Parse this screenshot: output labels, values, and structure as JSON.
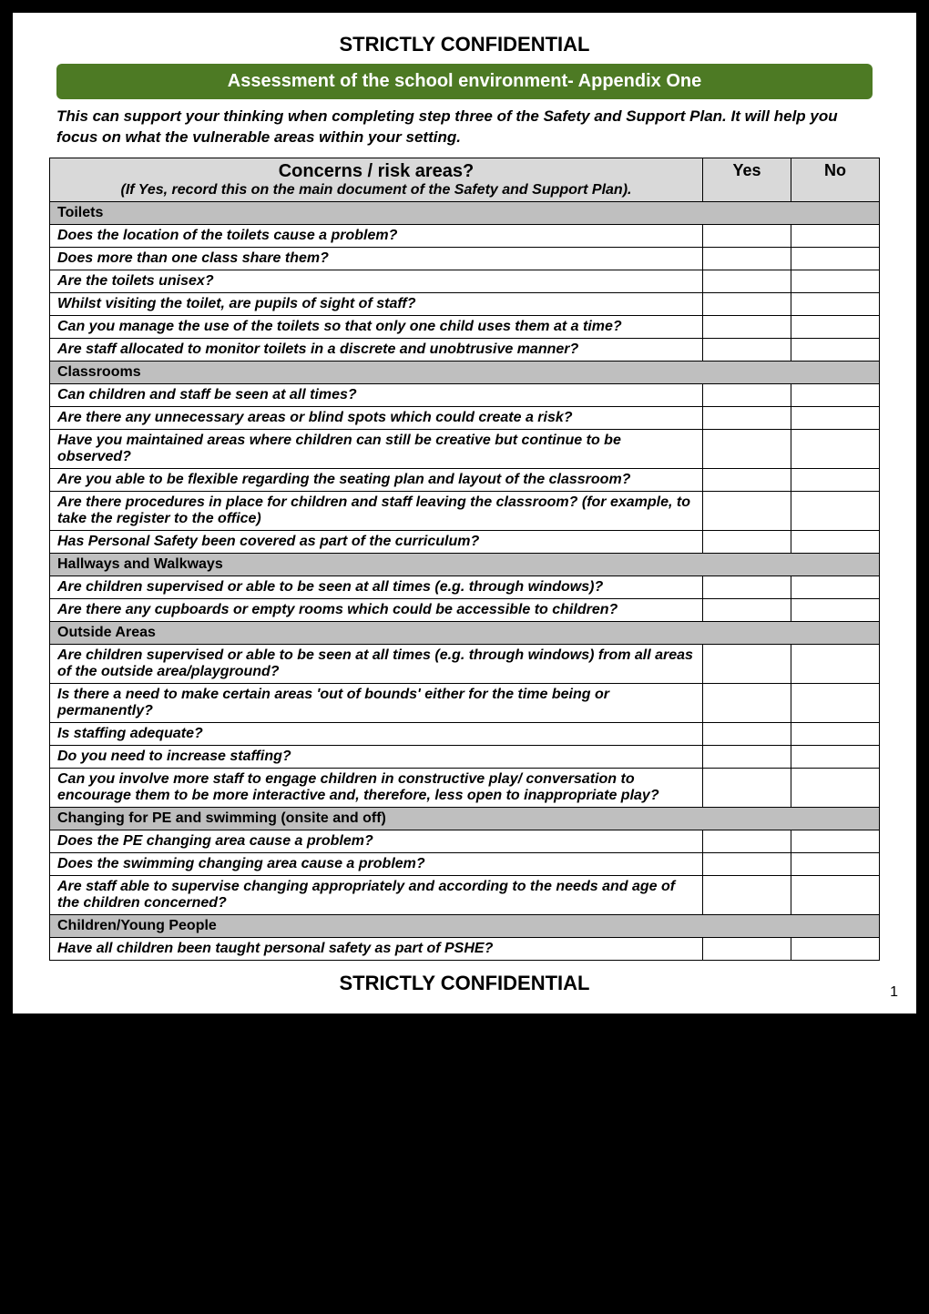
{
  "header": "STRICTLY CONFIDENTIAL",
  "banner": "Assessment of the school environment- Appendix One",
  "intro": "This can support your thinking when completing step three of the Safety and Support Plan. It will help you focus on what the vulnerable areas within your setting.",
  "table_header": {
    "title": "Concerns / risk areas?",
    "subtitle": "(If Yes, record this on the main document of the Safety and Support Plan).",
    "yes": "Yes",
    "no": "No"
  },
  "rows": [
    {
      "type": "section",
      "text": "Toilets"
    },
    {
      "type": "q",
      "text": "Does the location of the toilets cause a problem?"
    },
    {
      "type": "q",
      "text": "Does more than one class share them?"
    },
    {
      "type": "q",
      "text": "Are the toilets unisex?"
    },
    {
      "type": "q",
      "text": "Whilst visiting the toilet, are pupils of sight of staff?"
    },
    {
      "type": "q",
      "text": "Can you manage the use of the toilets so that only one child uses them at a time?"
    },
    {
      "type": "q",
      "text": "Are staff allocated to monitor toilets in a discrete and unobtrusive manner?"
    },
    {
      "type": "section",
      "text": "Classrooms"
    },
    {
      "type": "q",
      "text": "Can children and staff be seen at all times?"
    },
    {
      "type": "q",
      "text": "Are there any unnecessary areas or blind spots which could create a risk?"
    },
    {
      "type": "q",
      "text": "Have you maintained areas where children can still be creative but continue to be observed?"
    },
    {
      "type": "q",
      "text": "Are you able to be flexible regarding the seating plan and layout of the classroom?"
    },
    {
      "type": "q",
      "text": "Are there procedures in place for children and staff leaving the classroom? (for example, to take the register to the office)"
    },
    {
      "type": "q",
      "text": "Has Personal Safety been covered as part of the curriculum?"
    },
    {
      "type": "section",
      "text": "Hallways and Walkways"
    },
    {
      "type": "q",
      "text": "Are children supervised or able to be seen at all times (e.g. through windows)?"
    },
    {
      "type": "q",
      "text": "Are there any cupboards or empty rooms which could be accessible to children?"
    },
    {
      "type": "section",
      "text": "Outside Areas"
    },
    {
      "type": "q",
      "text": "Are children supervised or able to be seen at all times (e.g. through windows) from all areas of the outside area/playground?"
    },
    {
      "type": "q",
      "text": "Is there a need to make certain areas 'out of bounds' either for the time being or permanently?"
    },
    {
      "type": "q",
      "text": "Is staffing adequate?"
    },
    {
      "type": "q",
      "text": "Do you need to increase staffing?"
    },
    {
      "type": "q",
      "text": "Can you involve more staff to engage children in constructive play/ conversation to encourage them to be more interactive and, therefore, less open to inappropriate play?"
    },
    {
      "type": "section",
      "text": "Changing for PE and swimming (onsite and off)"
    },
    {
      "type": "q",
      "text": "Does the PE changing area cause a problem?"
    },
    {
      "type": "q",
      "text": "Does the swimming changing area cause a problem?"
    },
    {
      "type": "q",
      "text": "Are staff able to supervise changing appropriately and according to the needs and age of the children concerned?"
    },
    {
      "type": "section",
      "text": "Children/Young People"
    },
    {
      "type": "q",
      "text": "Have all children been taught personal safety as part of PSHE?"
    }
  ],
  "footer": "STRICTLY CONFIDENTIAL",
  "pagenum": "1",
  "colors": {
    "banner_bg": "#4d7a24",
    "section_bg": "#bfbfbf",
    "header_bg": "#d9d9d9",
    "border": "#000000"
  }
}
